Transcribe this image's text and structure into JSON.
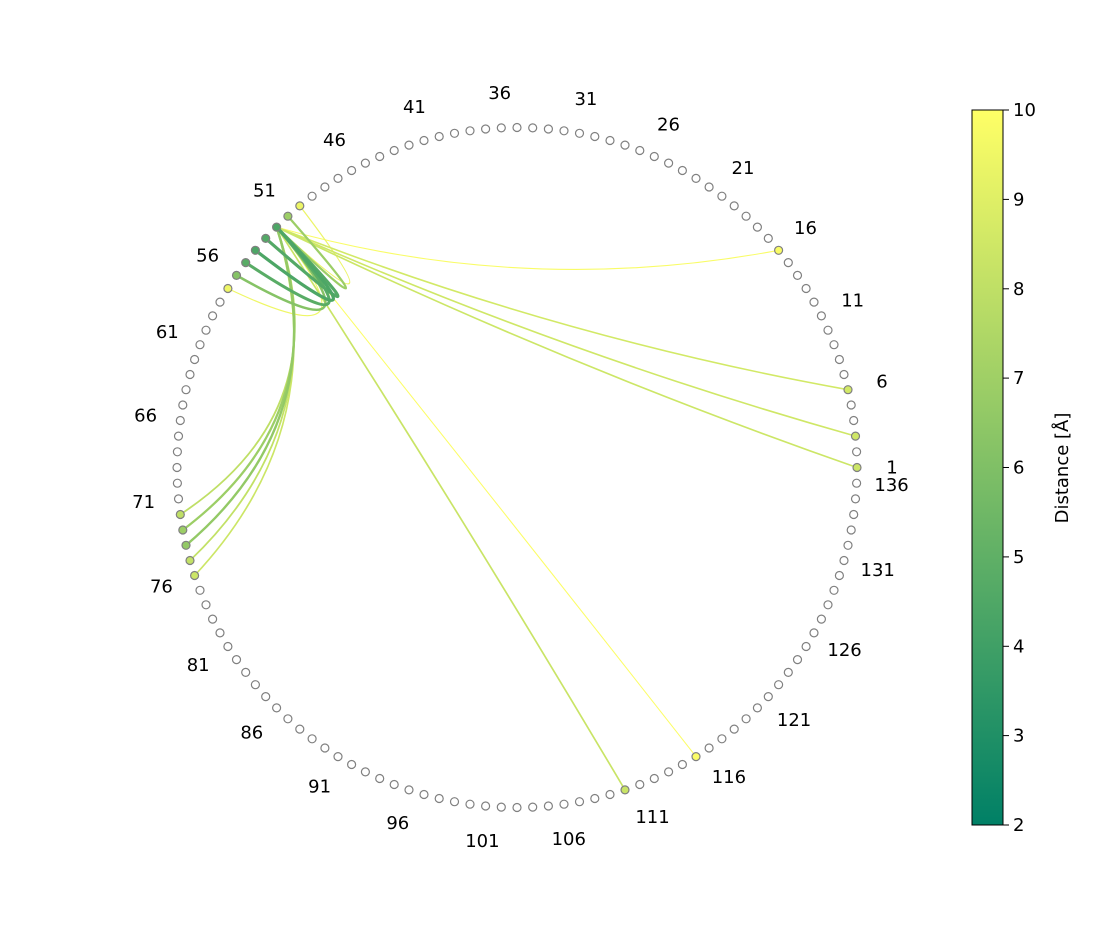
{
  "chart_data": {
    "type": "circular-contact-map",
    "n_residues": 136,
    "residue_tick_labels": [
      "1",
      "6",
      "11",
      "16",
      "21",
      "26",
      "31",
      "36",
      "41",
      "46",
      "51",
      "56",
      "61",
      "66",
      "71",
      "76",
      "81",
      "86",
      "91",
      "96",
      "101",
      "106",
      "111",
      "116",
      "121",
      "126",
      "131",
      "136"
    ],
    "contacts": [
      {
        "i": 52,
        "j": 16,
        "distance": 9.8
      },
      {
        "i": 52,
        "j": 6,
        "distance": 8.6
      },
      {
        "i": 52,
        "j": 3,
        "distance": 8.5
      },
      {
        "i": 52,
        "j": 1,
        "distance": 8.4
      },
      {
        "i": 52,
        "j": 115,
        "distance": 9.9
      },
      {
        "i": 52,
        "j": 110,
        "distance": 8.3
      },
      {
        "i": 52,
        "j": 72,
        "distance": 8.0
      },
      {
        "i": 52,
        "j": 73,
        "distance": 6.9
      },
      {
        "i": 52,
        "j": 74,
        "distance": 6.6
      },
      {
        "i": 52,
        "j": 75,
        "distance": 8.1
      },
      {
        "i": 52,
        "j": 76,
        "distance": 8.4
      },
      {
        "i": 52,
        "j": 50,
        "distance": 9.4
      },
      {
        "i": 52,
        "j": 51,
        "distance": 6.9
      },
      {
        "i": 52,
        "j": 53,
        "distance": 4.6
      },
      {
        "i": 52,
        "j": 54,
        "distance": 4.4
      },
      {
        "i": 52,
        "j": 55,
        "distance": 4.8
      },
      {
        "i": 52,
        "j": 56,
        "distance": 6.2
      },
      {
        "i": 52,
        "j": 57,
        "distance": 9.5
      }
    ],
    "colorbar": {
      "label": "Distance [Å]",
      "min": 2,
      "max": 10,
      "ticks": [
        "2",
        "3",
        "4",
        "5",
        "6",
        "7",
        "8",
        "9",
        "10"
      ],
      "colormap": "summer",
      "color_low": "#008066",
      "color_high": "#ffff66"
    },
    "node_edge_color": "#808080"
  }
}
